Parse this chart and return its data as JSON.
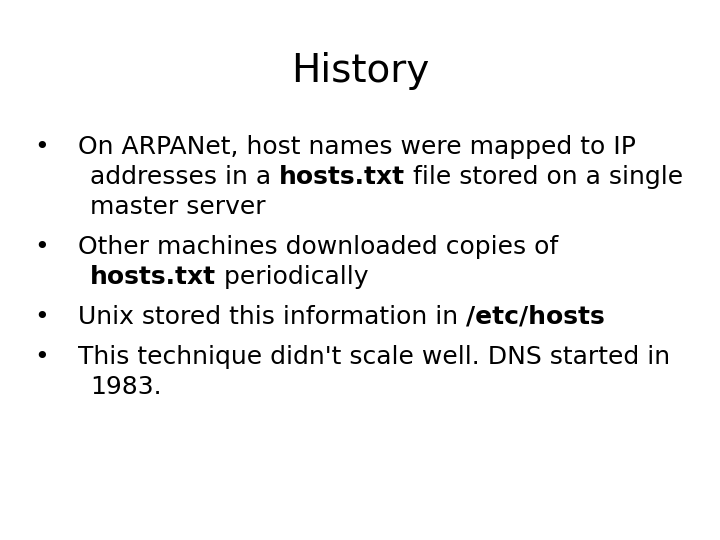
{
  "title": "History",
  "title_fontsize": 28,
  "title_color": "#000000",
  "background_color": "#ffffff",
  "bullet_points": [
    {
      "lines": [
        [
          {
            "text": "On ARPANet, host names were mapped to IP",
            "bold": false
          }
        ],
        [
          {
            "text": "addresses in a ",
            "bold": false
          },
          {
            "text": "hosts.txt",
            "bold": true
          },
          {
            "text": " file stored on a single",
            "bold": false
          }
        ],
        [
          {
            "text": "master server",
            "bold": false
          }
        ]
      ]
    },
    {
      "lines": [
        [
          {
            "text": "Other machines downloaded copies of",
            "bold": false
          }
        ],
        [
          {
            "text": "hosts.txt",
            "bold": true
          },
          {
            "text": " periodically",
            "bold": false
          }
        ]
      ]
    },
    {
      "lines": [
        [
          {
            "text": "Unix stored this information in ",
            "bold": false
          },
          {
            "text": "/etc/hosts",
            "bold": true
          }
        ]
      ]
    },
    {
      "lines": [
        [
          {
            "text": "This technique didn't scale well. DNS started in",
            "bold": false
          }
        ],
        [
          {
            "text": "1983.",
            "bold": false
          }
        ]
      ]
    }
  ],
  "text_color": "#000000",
  "text_fontsize": 18,
  "bullet_char": "•",
  "fig_width": 7.2,
  "fig_height": 5.4,
  "dpi": 100
}
